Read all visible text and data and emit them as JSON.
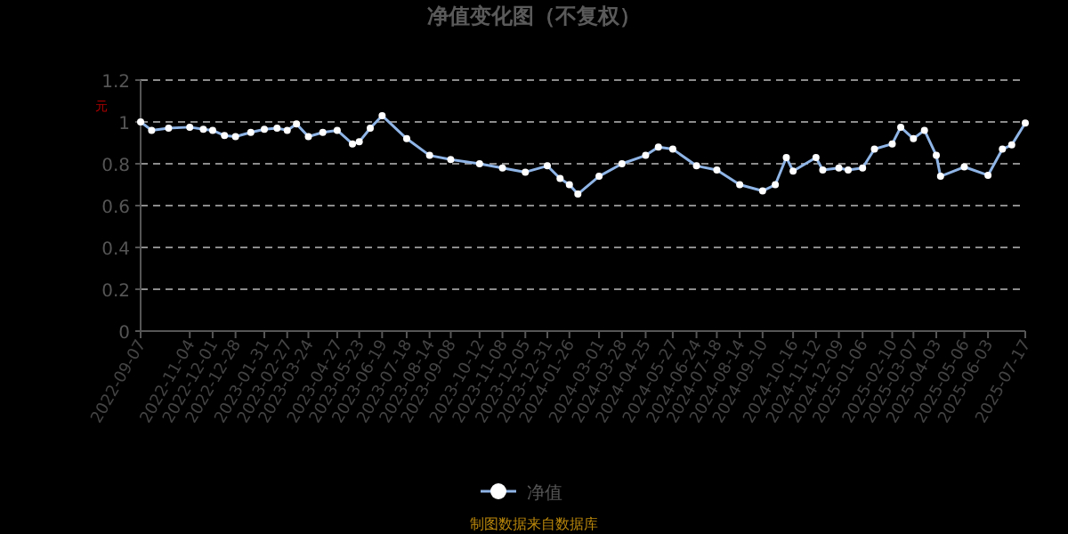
{
  "chart_data": {
    "type": "line",
    "title": "净值变化图（不复权）",
    "ylabel": "元",
    "annotations": [
      "制图数据来自数据库"
    ],
    "x": [
      "2022-09-07",
      "2022-09-20",
      "2022-10-10",
      "2022-11-04",
      "2022-11-20",
      "2022-12-01",
      "2022-12-15",
      "2022-12-28",
      "2023-01-15",
      "2023-01-31",
      "2023-02-15",
      "2023-02-27",
      "2023-03-10",
      "2023-03-24",
      "2023-04-10",
      "2023-04-27",
      "2023-05-15",
      "2023-05-23",
      "2023-06-05",
      "2023-06-19",
      "2023-07-18",
      "2023-08-14",
      "2023-09-08",
      "2023-10-12",
      "2023-11-08",
      "2023-12-05",
      "2023-12-31",
      "2024-01-15",
      "2024-01-26",
      "2024-02-05",
      "2024-03-01",
      "2024-03-28",
      "2024-04-25",
      "2024-05-10",
      "2024-05-27",
      "2024-06-24",
      "2024-07-18",
      "2024-08-14",
      "2024-09-10",
      "2024-09-25",
      "2024-10-08",
      "2024-10-16",
      "2024-11-12",
      "2024-11-20",
      "2024-12-09",
      "2024-12-20",
      "2025-01-06",
      "2025-01-20",
      "2025-02-10",
      "2025-02-20",
      "2025-03-07",
      "2025-03-20",
      "2025-04-03",
      "2025-04-08",
      "2025-05-06",
      "2025-06-03",
      "2025-06-20",
      "2025-07-01",
      "2025-07-17"
    ],
    "series": [
      {
        "name": "净值",
        "color": "#8fb4e6",
        "values": [
          1.0,
          0.96,
          0.97,
          0.975,
          0.965,
          0.96,
          0.935,
          0.93,
          0.95,
          0.965,
          0.97,
          0.96,
          0.99,
          0.93,
          0.95,
          0.96,
          0.895,
          0.905,
          0.97,
          1.03,
          0.92,
          0.84,
          0.82,
          0.8,
          0.78,
          0.76,
          0.79,
          0.73,
          0.7,
          0.655,
          0.74,
          0.8,
          0.84,
          0.88,
          0.87,
          0.79,
          0.77,
          0.7,
          0.67,
          0.7,
          0.83,
          0.765,
          0.83,
          0.77,
          0.78,
          0.77,
          0.78,
          0.87,
          0.895,
          0.975,
          0.92,
          0.96,
          0.84,
          0.74,
          0.785,
          0.745,
          0.87,
          0.89,
          0.995
        ]
      }
    ],
    "xlim": [
      "2022-09-07",
      "2025-07-17"
    ],
    "xticks": [
      "2022-09-07",
      "2022-11-04",
      "2022-12-01",
      "2022-12-28",
      "2023-01-31",
      "2023-02-27",
      "2023-03-24",
      "2023-04-27",
      "2023-05-23",
      "2023-06-19",
      "2023-07-18",
      "2023-08-14",
      "2023-09-08",
      "2023-10-12",
      "2023-11-08",
      "2023-12-05",
      "2023-12-31",
      "2024-01-26",
      "2024-03-01",
      "2024-03-28",
      "2024-04-25",
      "2024-05-27",
      "2024-06-24",
      "2024-07-18",
      "2024-08-14",
      "2024-09-10",
      "2024-10-16",
      "2024-11-12",
      "2024-12-09",
      "2025-01-06",
      "2025-02-10",
      "2025-03-07",
      "2025-04-03",
      "2025-05-06",
      "2025-06-03",
      "2025-07-17"
    ],
    "ylim": [
      0,
      1.2
    ],
    "yticks": [
      0,
      0.2,
      0.4,
      0.6,
      0.8,
      1,
      1.2
    ],
    "grid": "y",
    "line_style": "solid",
    "marker": "circle",
    "legend": "bottom"
  }
}
